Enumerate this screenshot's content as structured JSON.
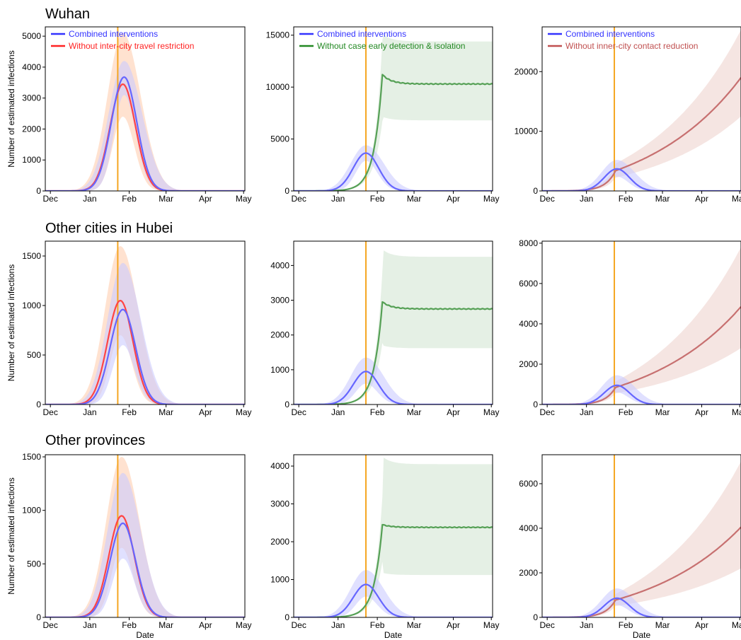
{
  "rows": [
    {
      "title": "Wuhan"
    },
    {
      "title": "Other cities in Hubei"
    },
    {
      "title": "Other provinces"
    }
  ],
  "colors": {
    "combined": "#6666ff",
    "travel": "#ff4444",
    "isolation": "#55a055",
    "contact": "#c77070",
    "vline": "#f5a623",
    "combined_band": "#ccccff",
    "travel_band": "#ffd8c0",
    "isolation_band": "#dcebdc",
    "contact_band": "#f2dcd8",
    "legend_blue": "#3333ff",
    "legend_red": "#ff2222",
    "legend_green": "#228822",
    "legend_brown": "#c05050"
  },
  "chart_data": [
    {
      "type": "line",
      "row": "Wuhan",
      "xlabel": "",
      "ylabel": "Number of estimated infections",
      "x_ticks": [
        "Dec",
        "Jan",
        "Feb",
        "Mar",
        "Apr",
        "May"
      ],
      "ylim": [
        0,
        5300
      ],
      "y_ticks": [
        0,
        1000,
        2000,
        3000,
        4000,
        5000
      ],
      "intervention_date": "Jan 23",
      "legend": [
        "Combined interventions",
        "Without inter-city travel restriction"
      ],
      "series": [
        {
          "name": "Combined interventions",
          "color_key": "combined",
          "shape": "peak",
          "peak": 3680,
          "peak_date": "Jan 28",
          "band_high": 4200,
          "band_low": 3100
        },
        {
          "name": "Without inter-city travel restriction",
          "color_key": "travel",
          "shape": "peak",
          "peak": 3450,
          "peak_date": "Jan 27",
          "band_high": 5100,
          "band_low": 2400
        }
      ]
    },
    {
      "type": "line",
      "row": "Wuhan",
      "xlabel": "",
      "ylabel": "",
      "x_ticks": [
        "Dec",
        "Jan",
        "Feb",
        "Mar",
        "Apr",
        "May"
      ],
      "ylim": [
        0,
        15800
      ],
      "y_ticks": [
        0,
        5000,
        10000,
        15000
      ],
      "intervention_date": "Jan 23",
      "legend": [
        "Combined interventions",
        "Without case early detection & isolation"
      ],
      "series": [
        {
          "name": "Combined interventions",
          "color_key": "combined",
          "shape": "peak",
          "peak": 3650,
          "peak_date": "Jan 23",
          "band_high": 4400,
          "band_low": 2900
        },
        {
          "name": "Without case early detection & isolation",
          "color_key": "isolation",
          "shape": "plateau",
          "peak": 11200,
          "plateau": 10300,
          "band_high": 14400,
          "band_low": 6800
        }
      ]
    },
    {
      "type": "line",
      "row": "Wuhan",
      "xlabel": "",
      "ylabel": "",
      "x_ticks": [
        "Dec",
        "Jan",
        "Feb",
        "Mar",
        "Apr",
        "May"
      ],
      "ylim": [
        0,
        27500
      ],
      "y_ticks": [
        0,
        10000,
        20000
      ],
      "intervention_date": "Jan 23",
      "legend": [
        "Combined interventions",
        "Without inner-city contact reduction"
      ],
      "series": [
        {
          "name": "Combined interventions",
          "color_key": "combined",
          "shape": "peak",
          "peak": 3700,
          "peak_date": "Jan 25",
          "band_high": 5200,
          "band_low": 2400
        },
        {
          "name": "Without inner-city contact reduction",
          "color_key": "contact",
          "shape": "growth",
          "start": 3400,
          "end": 19000,
          "band_high": 27000,
          "band_low": 12500
        }
      ]
    },
    {
      "type": "line",
      "row": "Other cities in Hubei",
      "xlabel": "",
      "ylabel": "Number of estimated infections",
      "x_ticks": [
        "Dec",
        "Jan",
        "Feb",
        "Mar",
        "Apr",
        "May"
      ],
      "ylim": [
        0,
        1650
      ],
      "y_ticks": [
        0,
        500,
        1000,
        1500
      ],
      "intervention_date": "Jan 23",
      "legend": [],
      "series": [
        {
          "name": "Combined interventions",
          "color_key": "combined",
          "shape": "peak",
          "peak": 960,
          "peak_date": "Jan 27",
          "band_high": 1430,
          "band_low": 600
        },
        {
          "name": "Without inter-city travel restriction",
          "color_key": "travel",
          "shape": "peak",
          "peak": 1050,
          "peak_date": "Jan 25",
          "band_high": 1600,
          "band_low": 700
        }
      ]
    },
    {
      "type": "line",
      "row": "Other cities in Hubei",
      "xlabel": "",
      "ylabel": "",
      "x_ticks": [
        "Dec",
        "Jan",
        "Feb",
        "Mar",
        "Apr",
        "May"
      ],
      "ylim": [
        0,
        4700
      ],
      "y_ticks": [
        0,
        1000,
        2000,
        3000,
        4000
      ],
      "intervention_date": "Jan 23",
      "legend": [],
      "series": [
        {
          "name": "Combined interventions",
          "color_key": "combined",
          "shape": "peak",
          "peak": 950,
          "peak_date": "Jan 23",
          "band_high": 1350,
          "band_low": 600
        },
        {
          "name": "Without case early detection & isolation",
          "color_key": "isolation",
          "shape": "plateau",
          "peak": 2950,
          "plateau": 2750,
          "band_high": 4250,
          "band_low": 1620
        }
      ]
    },
    {
      "type": "line",
      "row": "Other cities in Hubei",
      "xlabel": "",
      "ylabel": "",
      "x_ticks": [
        "Dec",
        "Jan",
        "Feb",
        "Mar",
        "Apr",
        "May"
      ],
      "ylim": [
        0,
        8100
      ],
      "y_ticks": [
        0,
        2000,
        4000,
        6000,
        8000
      ],
      "intervention_date": "Jan 23",
      "legend": [],
      "series": [
        {
          "name": "Combined interventions",
          "color_key": "combined",
          "shape": "peak",
          "peak": 950,
          "peak_date": "Jan 25",
          "band_high": 1450,
          "band_low": 600
        },
        {
          "name": "Without inner-city contact reduction",
          "color_key": "contact",
          "shape": "growth",
          "start": 850,
          "end": 4850,
          "band_high": 7800,
          "band_low": 2800
        }
      ]
    },
    {
      "type": "line",
      "row": "Other provinces",
      "xlabel": "Date",
      "ylabel": "Number of estimated infections",
      "x_ticks": [
        "Dec",
        "Jan",
        "Feb",
        "Mar",
        "Apr",
        "May"
      ],
      "ylim": [
        0,
        1520
      ],
      "y_ticks": [
        0,
        500,
        1000,
        1500
      ],
      "intervention_date": "Jan 23",
      "legend": [],
      "series": [
        {
          "name": "Combined interventions",
          "color_key": "combined",
          "shape": "peak",
          "peak": 880,
          "peak_date": "Jan 27",
          "band_high": 1350,
          "band_low": 550
        },
        {
          "name": "Without inter-city travel restriction",
          "color_key": "travel",
          "shape": "peak",
          "peak": 950,
          "peak_date": "Jan 26",
          "band_high": 1500,
          "band_low": 650
        }
      ]
    },
    {
      "type": "line",
      "row": "Other provinces",
      "xlabel": "Date",
      "ylabel": "",
      "x_ticks": [
        "Dec",
        "Jan",
        "Feb",
        "Mar",
        "Apr",
        "May"
      ],
      "ylim": [
        0,
        4300
      ],
      "y_ticks": [
        0,
        1000,
        2000,
        3000,
        4000
      ],
      "intervention_date": "Jan 23",
      "legend": [],
      "series": [
        {
          "name": "Combined interventions",
          "color_key": "combined",
          "shape": "peak",
          "peak": 870,
          "peak_date": "Jan 23",
          "band_high": 1250,
          "band_low": 550
        },
        {
          "name": "Without case early detection & isolation",
          "color_key": "isolation",
          "shape": "plateau",
          "peak": 2450,
          "plateau": 2380,
          "band_high": 4050,
          "band_low": 1120
        }
      ]
    },
    {
      "type": "line",
      "row": "Other provinces",
      "xlabel": "Date",
      "ylabel": "",
      "x_ticks": [
        "Dec",
        "Jan",
        "Feb",
        "Mar",
        "Apr",
        "May"
      ],
      "ylim": [
        0,
        7300
      ],
      "y_ticks": [
        0,
        2000,
        4000,
        6000
      ],
      "intervention_date": "Jan 23",
      "legend": [],
      "series": [
        {
          "name": "Combined interventions",
          "color_key": "combined",
          "shape": "peak",
          "peak": 860,
          "peak_date": "Jan 25",
          "band_high": 1300,
          "band_low": 550
        },
        {
          "name": "Without inner-city contact reduction",
          "color_key": "contact",
          "shape": "growth",
          "start": 780,
          "end": 4050,
          "band_high": 7000,
          "band_low": 2200
        }
      ]
    }
  ]
}
